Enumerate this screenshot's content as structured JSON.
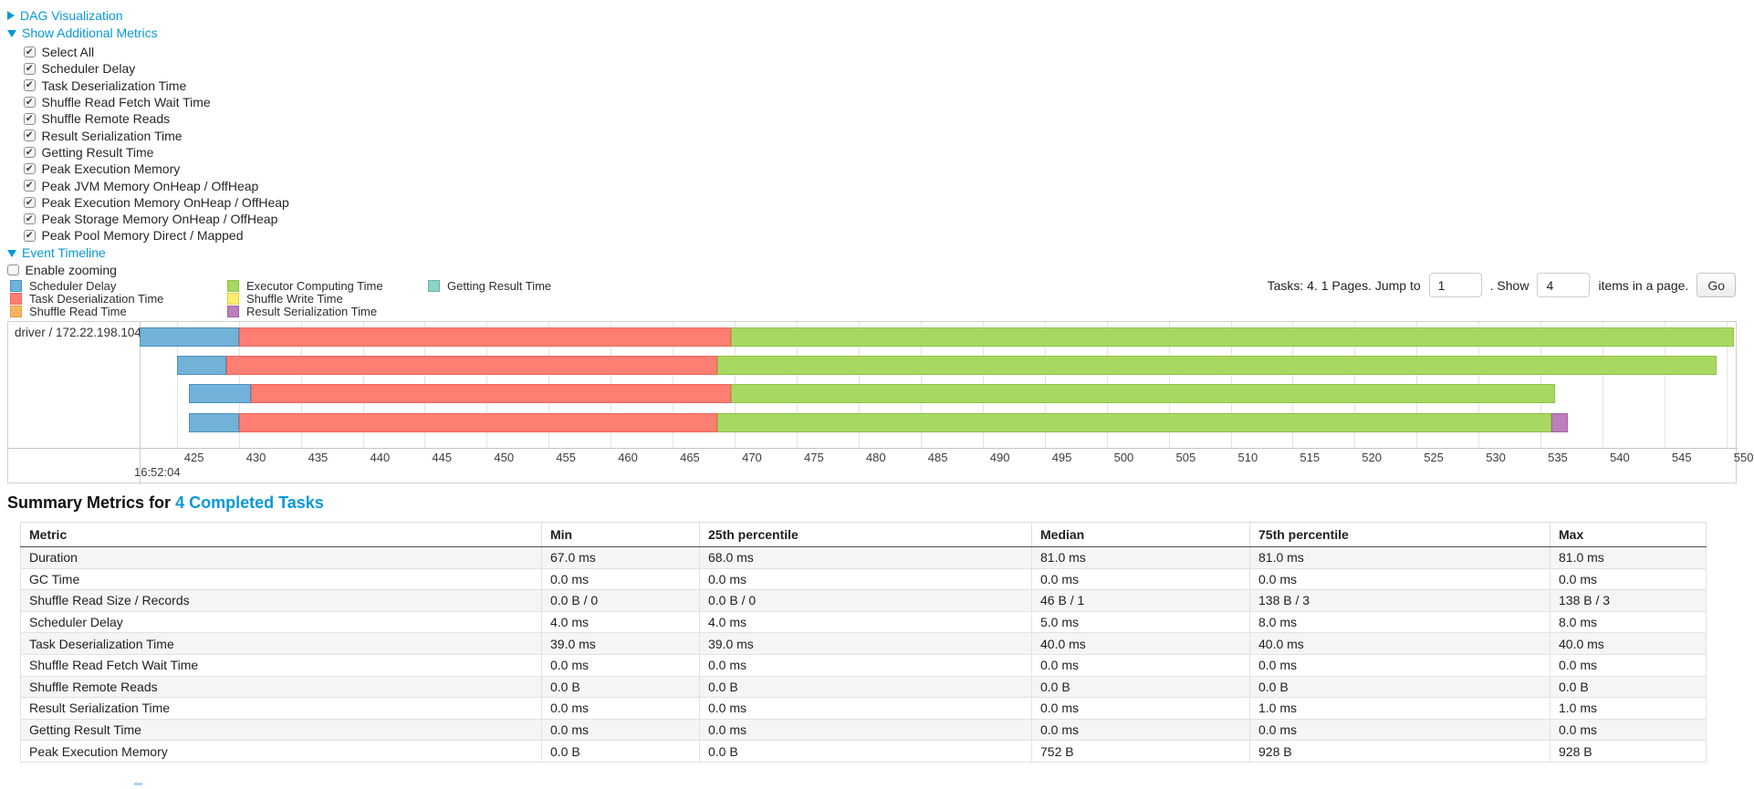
{
  "colors": {
    "accent": "#0998d8"
  },
  "controls": {
    "dag_label": "DAG Visualization",
    "metrics_label": "Show Additional Metrics",
    "metric_checkboxes": [
      {
        "label": "Select All",
        "checked": true
      },
      {
        "label": "Scheduler Delay",
        "checked": true
      },
      {
        "label": "Task Deserialization Time",
        "checked": true
      },
      {
        "label": "Shuffle Read Fetch Wait Time",
        "checked": true
      },
      {
        "label": "Shuffle Remote Reads",
        "checked": true
      },
      {
        "label": "Result Serialization Time",
        "checked": true
      },
      {
        "label": "Getting Result Time",
        "checked": true
      },
      {
        "label": "Peak Execution Memory",
        "checked": true
      },
      {
        "label": "Peak JVM Memory OnHeap / OffHeap",
        "checked": true
      },
      {
        "label": "Peak Execution Memory OnHeap / OffHeap",
        "checked": true
      },
      {
        "label": "Peak Storage Memory OnHeap / OffHeap",
        "checked": true
      },
      {
        "label": "Peak Pool Memory Direct / Mapped",
        "checked": true
      }
    ],
    "event_timeline_label": "Event Timeline",
    "enable_zooming": {
      "label": "Enable zooming",
      "checked": false
    }
  },
  "legend": {
    "columns": [
      [
        {
          "label": "Scheduler Delay",
          "color": "#73b2d8",
          "border": "#4a90bd"
        },
        {
          "label": "Task Deserialization Time",
          "color": "#fd7e72",
          "border": "#f4645c"
        },
        {
          "label": "Shuffle Read Time",
          "color": "#fdb462",
          "border": "#f09a3e"
        }
      ],
      [
        {
          "label": "Executor Computing Time",
          "color": "#a9d862",
          "border": "#8bc440"
        },
        {
          "label": "Shuffle Write Time",
          "color": "#ffed6f",
          "border": "#e0cf45"
        },
        {
          "label": "Result Serialization Time",
          "color": "#bb7fbc",
          "border": "#a661a8"
        }
      ],
      [
        {
          "label": "Getting Result Time",
          "color": "#8dd3c7",
          "border": "#66b5a7"
        }
      ]
    ]
  },
  "pagination": {
    "prefix": "Tasks: 4. 1 Pages. Jump to",
    "jump_value": "1",
    "mid": ". Show",
    "show_value": "4",
    "suffix": "items in a page.",
    "go_label": "Go"
  },
  "chart_data": {
    "type": "timeline-gantt",
    "group_label": "driver / 172.22.198.104",
    "x_axis": {
      "unit": "milliseconds within second 16:52:04",
      "start_time_label": "16:52:04",
      "domain_ms": [
        422,
        550.6
      ],
      "ticks_ms": [
        425,
        430,
        435,
        440,
        445,
        450,
        455,
        460,
        465,
        470,
        475,
        480,
        485,
        490,
        495,
        500,
        505,
        510,
        515,
        520,
        525,
        530,
        535,
        540,
        545,
        550
      ]
    },
    "series_colors": {
      "scheduler-delay": {
        "fill": "#73b2d8",
        "border": "#4a90bd"
      },
      "task-deserialization": {
        "fill": "#fd7e72",
        "border": "#f4645c"
      },
      "executor-computing": {
        "fill": "#a9d862",
        "border": "#8bc440"
      },
      "result-serialization": {
        "fill": "#bb7fbc",
        "border": "#a661a8"
      }
    },
    "tasks": [
      {
        "segments": [
          {
            "name": "scheduler-delay",
            "start": 422,
            "end": 430
          },
          {
            "name": "task-deserialization",
            "start": 430,
            "end": 469.7
          },
          {
            "name": "executor-computing",
            "start": 469.7,
            "end": 550.6
          }
        ]
      },
      {
        "segments": [
          {
            "name": "scheduler-delay",
            "start": 425,
            "end": 429
          },
          {
            "name": "task-deserialization",
            "start": 429,
            "end": 468.6
          },
          {
            "name": "executor-computing",
            "start": 468.6,
            "end": 549.2
          }
        ]
      },
      {
        "segments": [
          {
            "name": "scheduler-delay",
            "start": 426,
            "end": 431
          },
          {
            "name": "task-deserialization",
            "start": 431,
            "end": 469.7
          },
          {
            "name": "executor-computing",
            "start": 469.7,
            "end": 536.2
          }
        ]
      },
      {
        "segments": [
          {
            "name": "scheduler-delay",
            "start": 426,
            "end": 430
          },
          {
            "name": "task-deserialization",
            "start": 430,
            "end": 468.6
          },
          {
            "name": "executor-computing",
            "start": 468.6,
            "end": 535.9
          },
          {
            "name": "result-serialization",
            "start": 535.9,
            "end": 537.2
          }
        ]
      }
    ]
  },
  "summary": {
    "title_prefix": "Summary Metrics for ",
    "title_link": "4 Completed Tasks",
    "columns": [
      "Metric",
      "Min",
      "25th percentile",
      "Median",
      "75th percentile",
      "Max"
    ],
    "rows": [
      [
        "Duration",
        "67.0 ms",
        "68.0 ms",
        "81.0 ms",
        "81.0 ms",
        "81.0 ms"
      ],
      [
        "GC Time",
        "0.0 ms",
        "0.0 ms",
        "0.0 ms",
        "0.0 ms",
        "0.0 ms"
      ],
      [
        "Shuffle Read Size / Records",
        "0.0 B / 0",
        "0.0 B / 0",
        "46 B / 1",
        "138 B / 3",
        "138 B / 3"
      ],
      [
        "Scheduler Delay",
        "4.0 ms",
        "4.0 ms",
        "5.0 ms",
        "8.0 ms",
        "8.0 ms"
      ],
      [
        "Task Deserialization Time",
        "39.0 ms",
        "39.0 ms",
        "40.0 ms",
        "40.0 ms",
        "40.0 ms"
      ],
      [
        "Shuffle Read Fetch Wait Time",
        "0.0 ms",
        "0.0 ms",
        "0.0 ms",
        "0.0 ms",
        "0.0 ms"
      ],
      [
        "Shuffle Remote Reads",
        "0.0 B",
        "0.0 B",
        "0.0 B",
        "0.0 B",
        "0.0 B"
      ],
      [
        "Result Serialization Time",
        "0.0 ms",
        "0.0 ms",
        "0.0 ms",
        "1.0 ms",
        "1.0 ms"
      ],
      [
        "Getting Result Time",
        "0.0 ms",
        "0.0 ms",
        "0.0 ms",
        "0.0 ms",
        "0.0 ms"
      ],
      [
        "Peak Execution Memory",
        "0.0 B",
        "0.0 B",
        "752 B",
        "928 B",
        "928 B"
      ]
    ]
  }
}
